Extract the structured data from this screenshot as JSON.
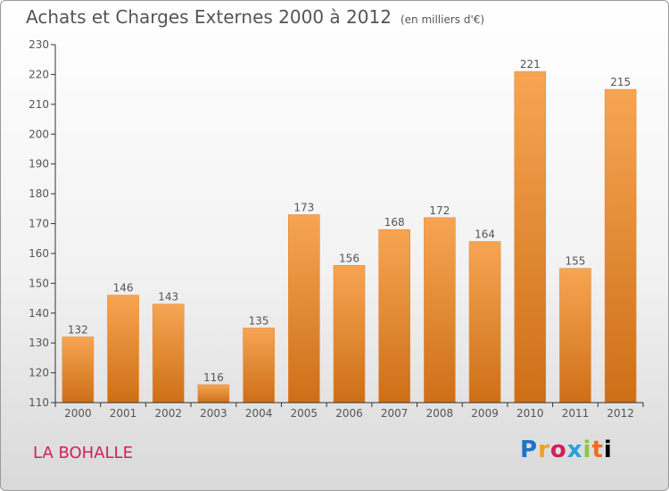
{
  "header": {
    "title": "Achats et Charges Externes 2000 à 2012",
    "unit": "(en milliers d'€)"
  },
  "footer": {
    "location": "LA BOHALLE",
    "logo_text": "Proxiti"
  },
  "colors": {
    "bar_top": "#f7a553",
    "bar_bottom": "#cd6f17",
    "axis": "#333333",
    "text": "#555555",
    "location": "#d0205e"
  },
  "chart_data": {
    "type": "bar",
    "title": "Achats et Charges Externes 2000 à 2012",
    "subtitle": "(en milliers d'€)",
    "categories": [
      "2000",
      "2001",
      "2002",
      "2003",
      "2004",
      "2005",
      "2006",
      "2007",
      "2008",
      "2009",
      "2010",
      "2011",
      "2012"
    ],
    "values": [
      132,
      146,
      143,
      116,
      135,
      173,
      156,
      168,
      172,
      164,
      221,
      155,
      215
    ],
    "ylim": [
      110,
      230
    ],
    "yticks": [
      110,
      120,
      130,
      140,
      150,
      160,
      170,
      180,
      190,
      200,
      210,
      220,
      230
    ],
    "grid": false,
    "data_labels": true
  }
}
